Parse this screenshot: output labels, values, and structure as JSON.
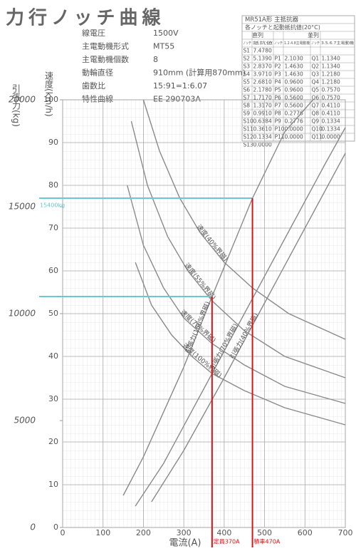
{
  "title": "力行ノッチ曲線",
  "specs": [
    {
      "label": "線電圧",
      "value": "1500V"
    },
    {
      "label": "主電動機形式",
      "value": "MT55"
    },
    {
      "label": "主電動機個数",
      "value": "8"
    },
    {
      "label": "動輪直径",
      "value": "910mm (計算用870mm)"
    },
    {
      "label": "歯数比",
      "value": "15:91=1:6.07"
    },
    {
      "label": "特性曲線",
      "value": "EE 290703A"
    }
  ],
  "table": {
    "title": "MR51A形 主抵抗器",
    "subtitle": "各ノッチと起動抵抗値(20°C)",
    "groups": [
      "直列",
      "並列"
    ],
    "header": [
      "ノッチ",
      "抵抗値",
      "ノッチ",
      "1.2.4.8主電動機",
      "ノッチ",
      "3.5.6.7主電動機"
    ],
    "rows": [
      [
        "S1",
        "7.4780"
      ],
      [
        "S2",
        "5.1390",
        "P1",
        "2.1030",
        "Q1",
        "1.1340"
      ],
      [
        "S3",
        "2.8370",
        "P2",
        "1.4630",
        "Q2",
        "1.1340"
      ],
      [
        "S4",
        "3.9710",
        "P3",
        "1.4630",
        "Q3",
        "1.2180"
      ],
      [
        "S5",
        "2.6810",
        "P4",
        "0.9600",
        "Q4",
        "1.2180"
      ],
      [
        "S6",
        "2.1780",
        "P5",
        "0.9600",
        "Q5",
        "0.7570"
      ],
      [
        "S7",
        "1.7170",
        "P6",
        "0.5600",
        "Q6",
        "0.7570"
      ],
      [
        "S8",
        "1.3170",
        "P7",
        "0.5600",
        "Q7",
        "0.4110"
      ],
      [
        "S9",
        "0.9910",
        "P8",
        "0.2776",
        "Q8",
        "0.4110"
      ],
      [
        "S10",
        "0.6384",
        "P9",
        "0.2776",
        "Q9",
        "0.1334"
      ],
      [
        "S11",
        "0.3610",
        "P10",
        "0.0000",
        "Q10",
        "0.1334"
      ],
      [
        "S12",
        "0.1334",
        "P11",
        "0.0000",
        "Q11",
        "0.0000"
      ],
      [
        "S13",
        "0.0000"
      ]
    ]
  },
  "chart_data": {
    "type": "line",
    "xlabel": "電流(A)",
    "ylabel": "速度(km/h)",
    "y2label": "引張力(kg)",
    "xlim": [
      0,
      700
    ],
    "xticks": [
      0,
      100,
      200,
      300,
      400,
      500,
      600,
      700
    ],
    "ylim": [
      0,
      100
    ],
    "yticks": [
      0,
      10,
      20,
      30,
      40,
      50,
      60,
      70,
      80,
      90,
      100
    ],
    "y2lim": [
      0,
      20000
    ],
    "y2ticks": [
      0,
      5000,
      10000,
      15000,
      20000
    ],
    "grid": true,
    "series": [
      {
        "name": "速度(100%界磁)",
        "color": "#8a8a8a",
        "x": [
          180,
          220,
          270,
          320,
          370,
          450,
          550,
          700
        ],
        "values": [
          62,
          52,
          45,
          40,
          36,
          32,
          28,
          24
        ]
      },
      {
        "name": "速度(70%界磁)",
        "color": "#8a8a8a",
        "x": [
          160,
          200,
          250,
          300,
          370,
          450,
          550,
          700
        ],
        "values": [
          80,
          66,
          56,
          49,
          43,
          38,
          33,
          29
        ]
      },
      {
        "name": "速度(55%界磁)",
        "color": "#8a8a8a",
        "x": [
          170,
          210,
          260,
          310,
          370,
          450,
          550,
          700
        ],
        "values": [
          95,
          80,
          68,
          60,
          53,
          46,
          40,
          35
        ]
      },
      {
        "name": "速度(40%界磁)",
        "color": "#8a8a8a",
        "x": [
          200,
          240,
          290,
          340,
          400,
          470,
          560,
          700
        ],
        "values": [
          100,
          88,
          77,
          69,
          62,
          56,
          50,
          44
        ]
      },
      {
        "name": "引張力(100%界磁)",
        "color": "#8a8a8a",
        "axis": "y2",
        "x": [
          150,
          200,
          300,
          370,
          470,
          550,
          620
        ],
        "values": [
          1500,
          3300,
          7500,
          10800,
          15400,
          18500,
          20000
        ]
      },
      {
        "name": "引張力(70%界磁)",
        "color": "#8a8a8a",
        "axis": "y2",
        "x": [
          180,
          250,
          350,
          450,
          550,
          650,
          700
        ],
        "values": [
          1000,
          3000,
          6500,
          10000,
          13500,
          17000,
          18700
        ]
      },
      {
        "name": "引張力(40%界磁)",
        "color": "#8a8a8a",
        "axis": "y2",
        "x": [
          220,
          300,
          400,
          500,
          600,
          700
        ],
        "values": [
          1200,
          3600,
          7000,
          10500,
          14000,
          17500
        ]
      }
    ],
    "guides": [
      {
        "force": 15400,
        "current": 470,
        "force_label": "15400kg",
        "current_label": "積車470A"
      },
      {
        "force": 10800,
        "current": 370,
        "current_label": "定員370A"
      }
    ],
    "guide_colors": {
      "force": "#6cc8d0",
      "current": "#e01010"
    }
  }
}
